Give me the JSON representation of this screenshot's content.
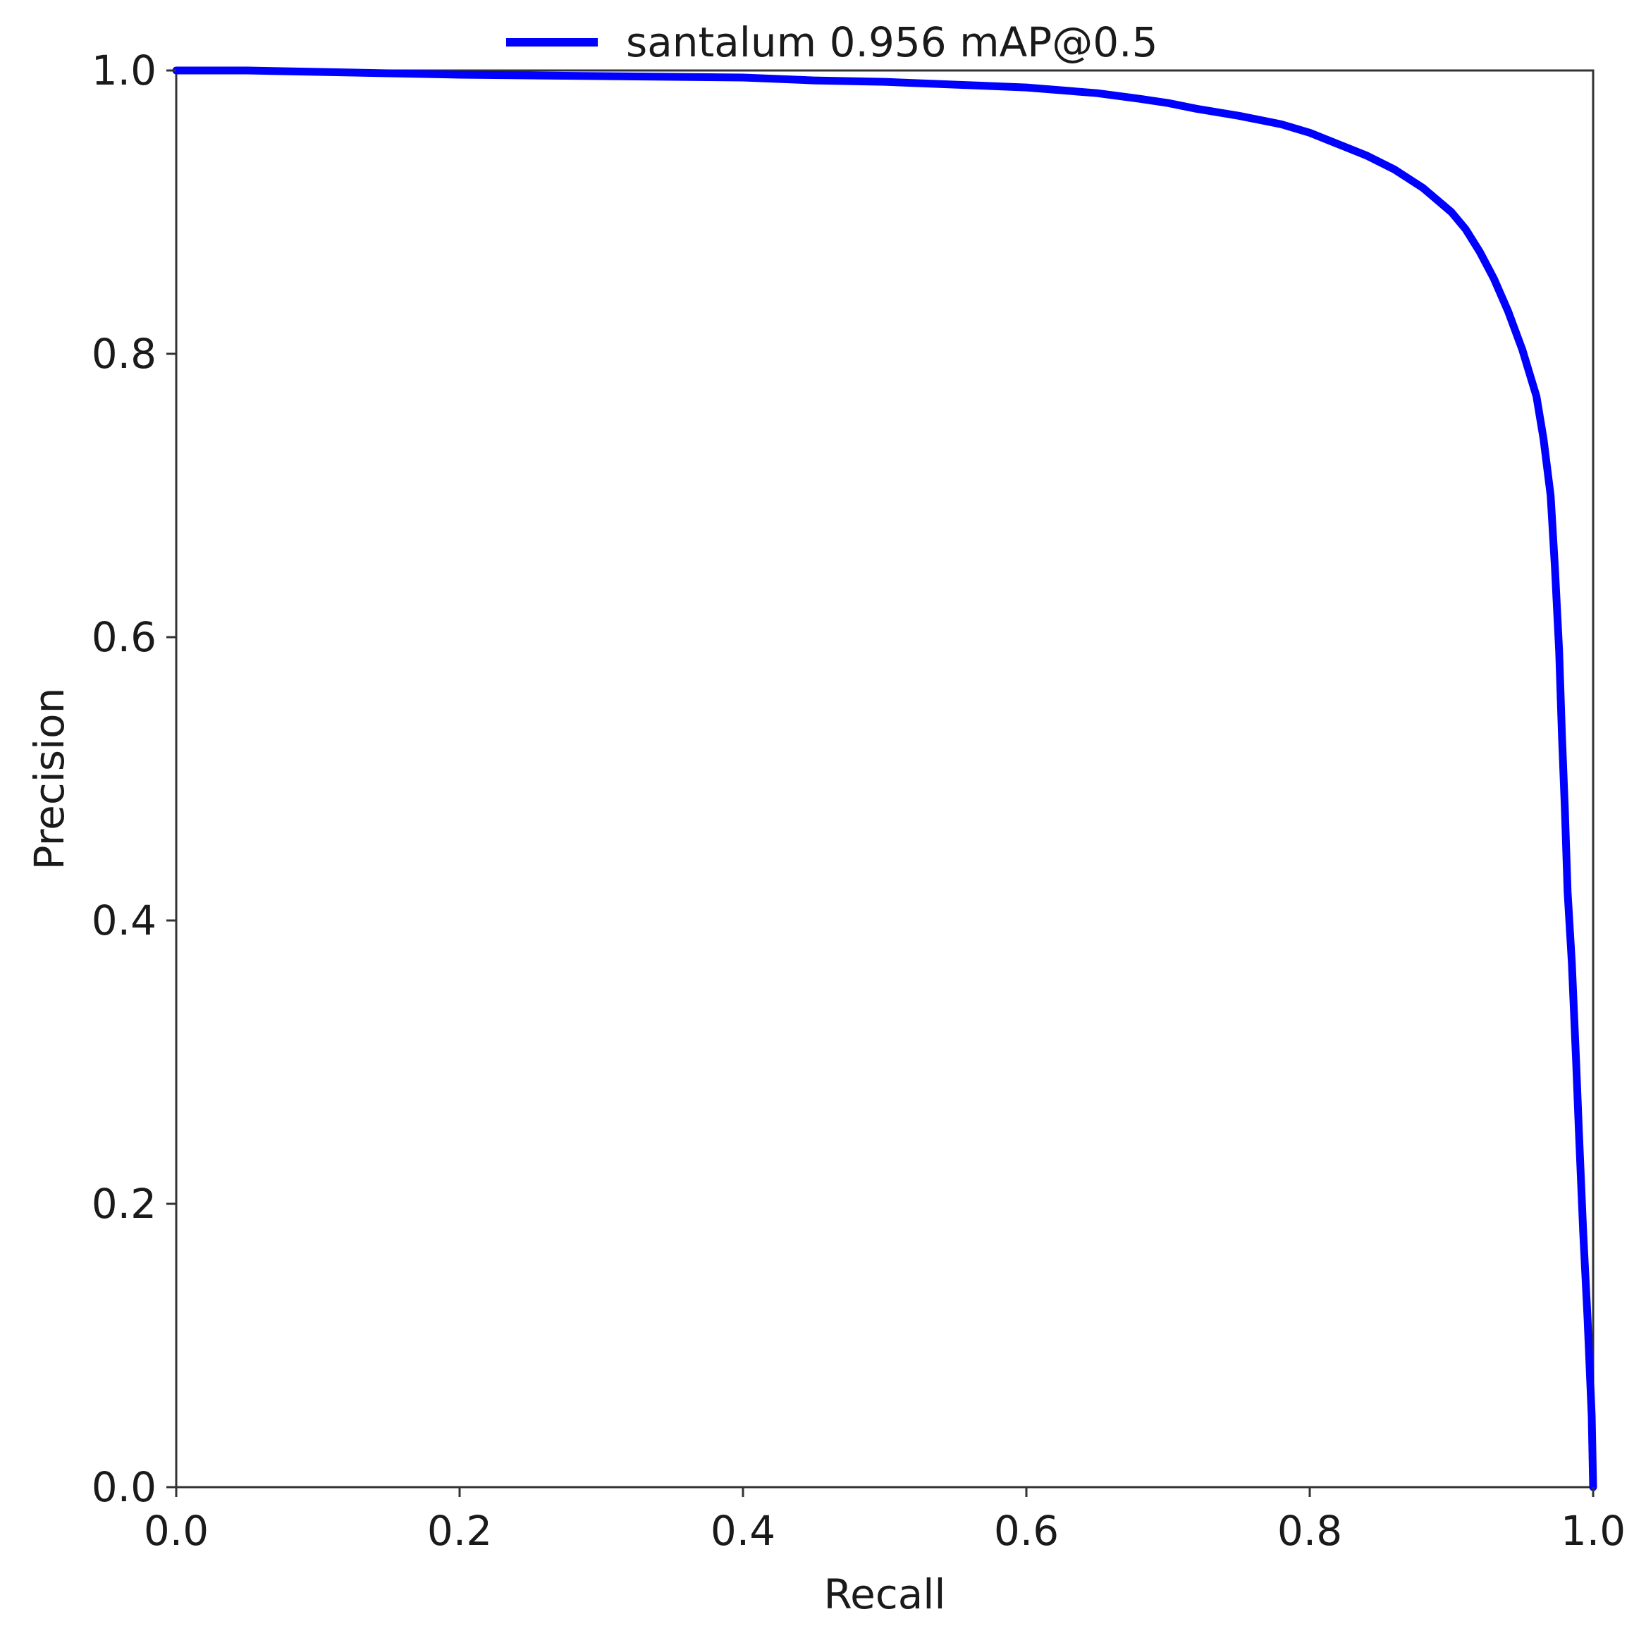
{
  "chart_data": {
    "type": "line",
    "xlabel": "Recall",
    "ylabel": "Precision",
    "xlim": [
      0.0,
      1.0
    ],
    "ylim": [
      0.0,
      1.0
    ],
    "x_ticks": [
      "0.0",
      "0.2",
      "0.4",
      "0.6",
      "0.8",
      "1.0"
    ],
    "y_ticks": [
      "0.0",
      "0.2",
      "0.4",
      "0.6",
      "0.8",
      "1.0"
    ],
    "grid": false,
    "legend_position": "top-center",
    "series": [
      {
        "name": "santalum 0.956 mAP@0.5",
        "color": "#0000ff",
        "points": [
          [
            0.0,
            1.0
          ],
          [
            0.05,
            1.0
          ],
          [
            0.1,
            0.999
          ],
          [
            0.15,
            0.998
          ],
          [
            0.2,
            0.997
          ],
          [
            0.3,
            0.996
          ],
          [
            0.4,
            0.995
          ],
          [
            0.45,
            0.993
          ],
          [
            0.5,
            0.992
          ],
          [
            0.55,
            0.99
          ],
          [
            0.6,
            0.988
          ],
          [
            0.65,
            0.984
          ],
          [
            0.68,
            0.98
          ],
          [
            0.7,
            0.977
          ],
          [
            0.72,
            0.973
          ],
          [
            0.75,
            0.968
          ],
          [
            0.78,
            0.962
          ],
          [
            0.8,
            0.956
          ],
          [
            0.82,
            0.948
          ],
          [
            0.84,
            0.94
          ],
          [
            0.86,
            0.93
          ],
          [
            0.88,
            0.917
          ],
          [
            0.9,
            0.9
          ],
          [
            0.91,
            0.888
          ],
          [
            0.92,
            0.872
          ],
          [
            0.93,
            0.853
          ],
          [
            0.94,
            0.83
          ],
          [
            0.95,
            0.803
          ],
          [
            0.96,
            0.77
          ],
          [
            0.965,
            0.74
          ],
          [
            0.97,
            0.7
          ],
          [
            0.973,
            0.65
          ],
          [
            0.976,
            0.59
          ],
          [
            0.978,
            0.53
          ],
          [
            0.98,
            0.48
          ],
          [
            0.982,
            0.42
          ],
          [
            0.985,
            0.37
          ],
          [
            0.988,
            0.3
          ],
          [
            0.99,
            0.25
          ],
          [
            0.993,
            0.18
          ],
          [
            0.996,
            0.12
          ],
          [
            0.999,
            0.05
          ],
          [
            1.0,
            0.0
          ]
        ]
      }
    ]
  }
}
